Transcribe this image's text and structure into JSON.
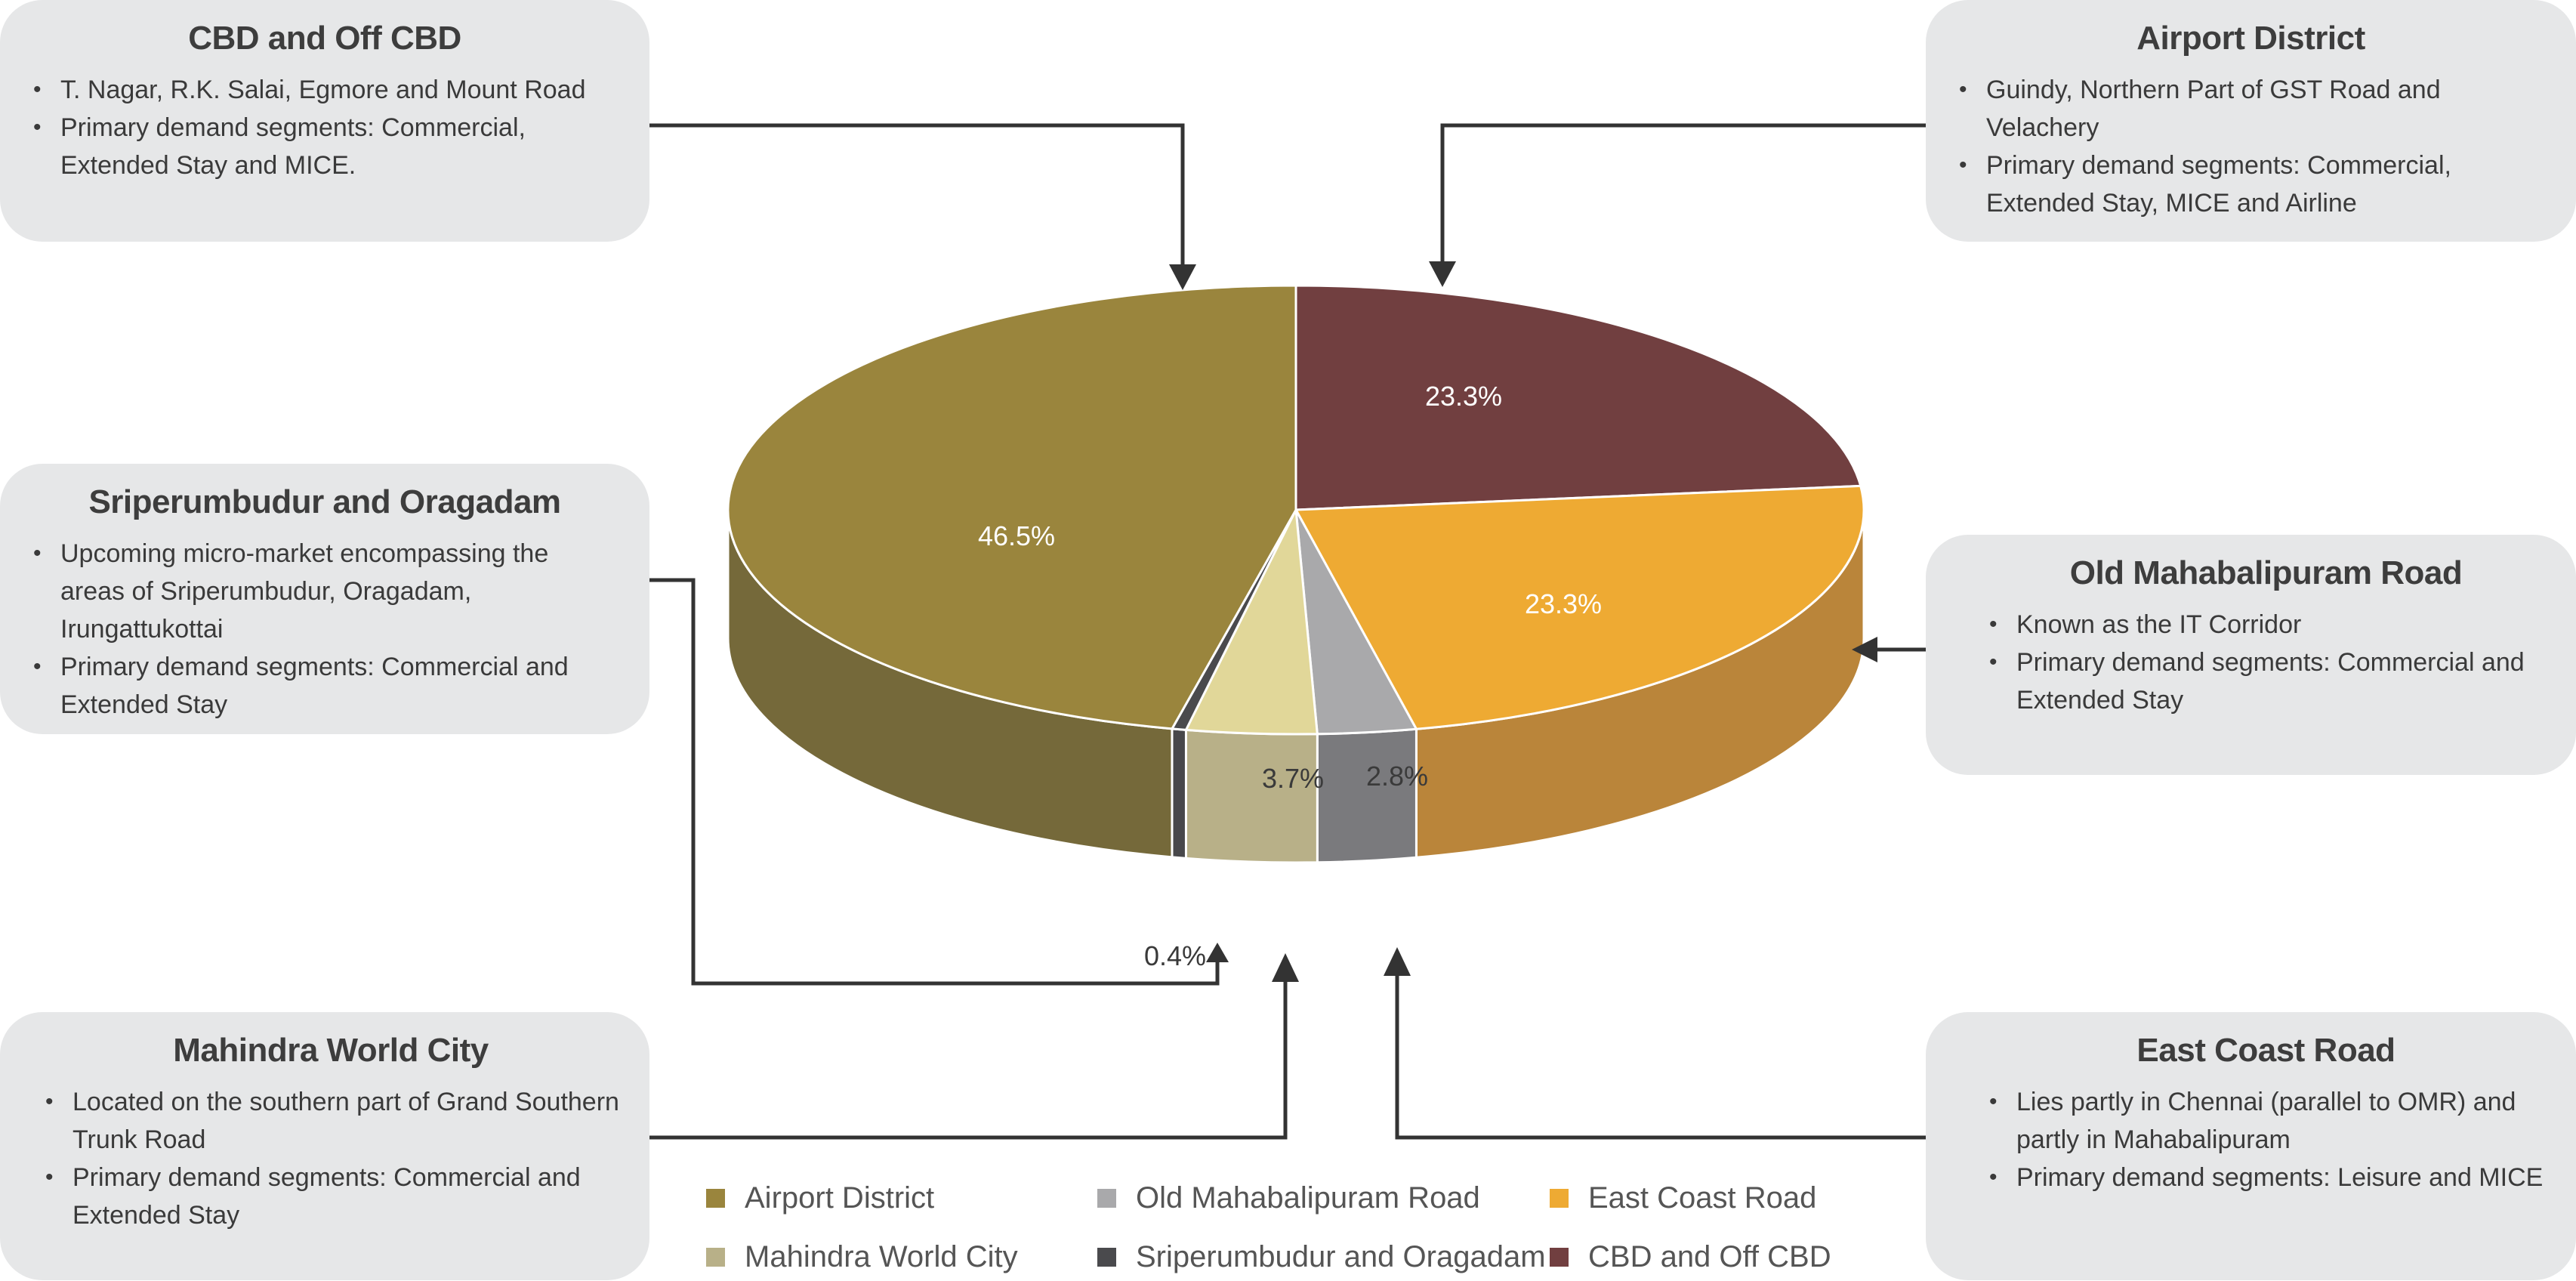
{
  "chart_data": {
    "type": "pie",
    "categories": [
      "Airport District",
      "Old Mahabalipuram Road",
      "East Coast Road",
      "Mahindra World City",
      "Sriperumbudur and Oragadam",
      "CBD and Off CBD"
    ],
    "values": [
      46.5,
      2.8,
      23.3,
      3.7,
      0.4,
      23.3
    ],
    "labels": [
      "46.5%",
      "2.8%",
      "23.3%",
      "3.7%",
      "0.4%",
      "23.3%"
    ],
    "colors": [
      "#9a853d",
      "#a9a9ab",
      "#eeaa33",
      "#e1d799",
      "#4a4a4d",
      "#713f40"
    ],
    "side_colors": [
      "#75693a",
      "#7a7a7d",
      "#ba853a",
      "#b8b088",
      "#48484b",
      "#5a3233"
    ],
    "label_colors": [
      "#ffffff",
      "#3a3a3a",
      "#ffffff",
      "#3a3a3a",
      "#3a3a3a",
      "#ffffff"
    ],
    "legend_placement": "bottom",
    "legend": [
      {
        "label": "Airport District",
        "color": "#9a853d"
      },
      {
        "label": "Old Mahabalipuram Road",
        "color": "#a9a9ab"
      },
      {
        "label": "East Coast Road",
        "color": "#eeaa33"
      },
      {
        "label": "Mahindra World City",
        "color": "#b8b088"
      },
      {
        "label": "Sriperumbudur and Oragadam",
        "color": "#4a4a4d"
      },
      {
        "label": "CBD and Off CBD",
        "color": "#713f40"
      }
    ]
  },
  "callouts": {
    "cbd": {
      "title": "CBD and Off CBD",
      "bullets": [
        "T. Nagar, R.K. Salai, Egmore and Mount Road",
        "Primary demand segments: Commercial, Extended Stay and MICE."
      ]
    },
    "airport": {
      "title": "Airport District",
      "bullets": [
        "Guindy, Northern Part of GST Road and Velachery",
        "Primary demand segments: Commercial, Extended Stay, MICE and Airline"
      ]
    },
    "sriperumbudur": {
      "title": "Sriperumbudur and Oragadam",
      "bullets": [
        "Upcoming micro-market encompassing the areas of Sriperumbudur, Oragadam, Irungattukottai",
        "Primary demand segments: Commercial and Extended Stay"
      ]
    },
    "omr": {
      "title": "Old Mahabalipuram Road",
      "bullets": [
        "Known as the IT Corridor",
        "Primary demand segments: Commercial and Extended Stay"
      ]
    },
    "mwc": {
      "title": "Mahindra World City",
      "bullets": [
        "Located on the southern part of Grand Southern Trunk Road",
        "Primary demand segments: Commercial and Extended Stay"
      ]
    },
    "ecr": {
      "title": "East Coast Road",
      "bullets": [
        "Lies partly in Chennai (parallel to OMR) and partly in Mahabalipuram",
        "Primary demand segments: Leisure and MICE"
      ]
    }
  },
  "connector_color": "#333333"
}
